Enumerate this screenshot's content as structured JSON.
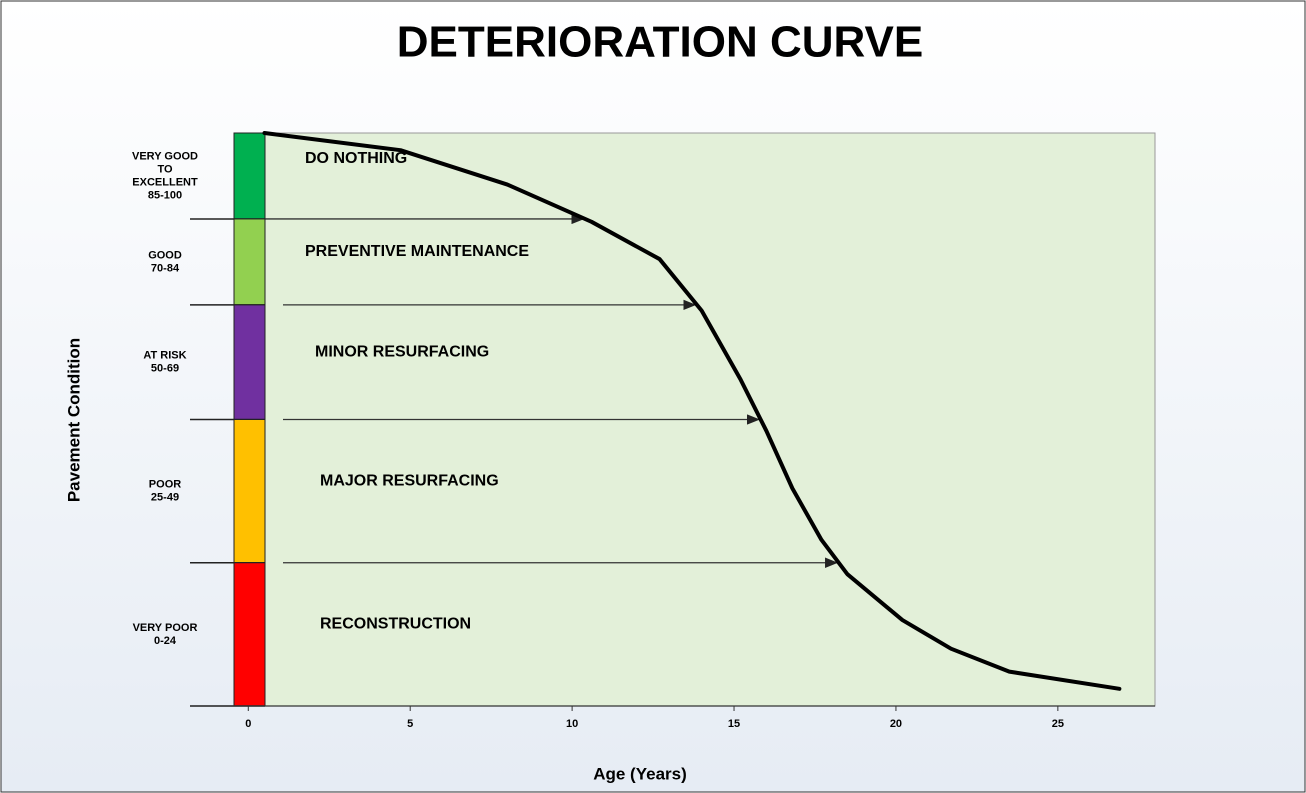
{
  "chart_data": {
    "type": "line",
    "title": "DETERIORATION CURVE",
    "x_label": "Age (Years)",
    "y_label": "Pavement Condition",
    "x": [
      0.5,
      4.7,
      8,
      10.6,
      12.7,
      14,
      15.2,
      16,
      16.8,
      17.7,
      18.5,
      20.2,
      21.7,
      23.5,
      26.9
    ],
    "values": [
      100,
      97,
      91,
      84.5,
      78,
      69,
      57,
      48,
      38,
      29,
      23,
      15,
      10,
      6,
      3
    ],
    "color": "#000000",
    "xlim": [
      -1.8,
      28
    ],
    "xticks": [
      0,
      5,
      10,
      15,
      20,
      25
    ],
    "ylim": [
      0,
      100
    ],
    "bands": [
      {
        "lines": [
          "VERY GOOD",
          "TO",
          "EXCELLENT"
        ],
        "range": "85-100",
        "min": 85,
        "color": "#00b050",
        "treatment": "DO NOTHING"
      },
      {
        "lines": [
          "GOOD"
        ],
        "range": "70-84",
        "min": 70,
        "color": "#92d050",
        "treatment": "PREVENTIVE MAINTENANCE"
      },
      {
        "lines": [
          "AT RISK"
        ],
        "range": "50-69",
        "min": 50,
        "color": "#7030a0",
        "treatment": "MINOR RESURFACING"
      },
      {
        "lines": [
          "POOR"
        ],
        "range": "25-49",
        "min": 25,
        "color": "#ffc000",
        "treatment": "MAJOR RESURFACING"
      },
      {
        "lines": [
          "VERY POOR"
        ],
        "range": "0-24",
        "min": 0,
        "color": "#ff0000",
        "treatment": "RECONSTRUCTION"
      }
    ]
  }
}
